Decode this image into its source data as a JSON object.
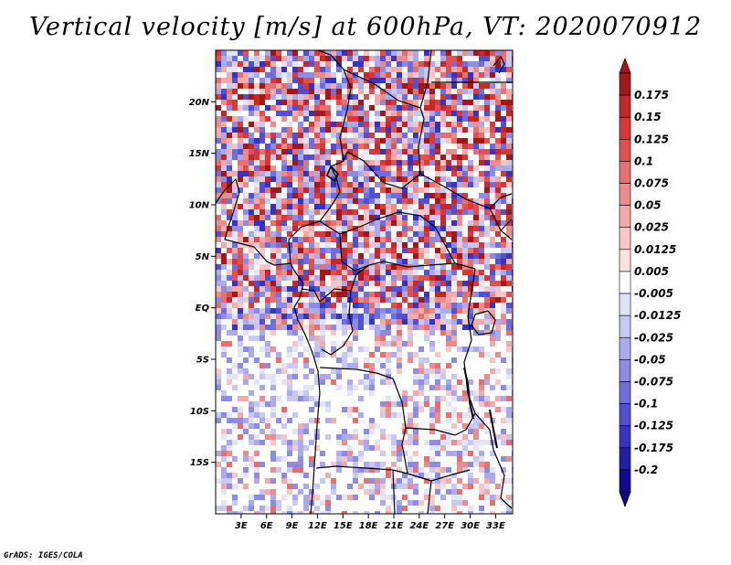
{
  "title": "Vertical velocity [m/s] at 600hPa, VT: 2020070912",
  "credit": "GrADS: IGES/COLA",
  "map": {
    "lon_range": [
      0,
      35
    ],
    "lat_range": [
      -20,
      25
    ],
    "lat_ticks": [
      {
        "value": 20,
        "label": "20N"
      },
      {
        "value": 15,
        "label": "15N"
      },
      {
        "value": 10,
        "label": "10N"
      },
      {
        "value": 5,
        "label": "5N"
      },
      {
        "value": 0,
        "label": "EQ"
      },
      {
        "value": -5,
        "label": "5S"
      },
      {
        "value": -10,
        "label": "10S"
      },
      {
        "value": -15,
        "label": "15S"
      }
    ],
    "lon_ticks": [
      {
        "value": 3,
        "label": "3E"
      },
      {
        "value": 6,
        "label": "6E"
      },
      {
        "value": 9,
        "label": "9E"
      },
      {
        "value": 12,
        "label": "12E"
      },
      {
        "value": 15,
        "label": "15E"
      },
      {
        "value": 18,
        "label": "18E"
      },
      {
        "value": 21,
        "label": "21E"
      },
      {
        "value": 24,
        "label": "24E"
      },
      {
        "value": 27,
        "label": "27E"
      },
      {
        "value": 30,
        "label": "30E"
      },
      {
        "value": 33,
        "label": "33E"
      }
    ]
  },
  "colorbar": {
    "labels": [
      "0.175",
      "0.15",
      "0.125",
      "0.1",
      "0.075",
      "0.05",
      "0.025",
      "0.0125",
      "0.005",
      "-0.005",
      "-0.0125",
      "-0.025",
      "-0.05",
      "-0.075",
      "-0.1",
      "-0.125",
      "-0.175",
      "-0.2"
    ],
    "colors": [
      "#a01818",
      "#c42828",
      "#d83838",
      "#e05050",
      "#e67070",
      "#ec8c8c",
      "#f2aaaa",
      "#f7c6c6",
      "#fbe2e2",
      "#ffffff",
      "#e4e4f8",
      "#c8c8f2",
      "#aaaaec",
      "#8c8ce4",
      "#6e6edc",
      "#5050d0",
      "#3434c0",
      "#1e1ea6",
      "#120a8e"
    ]
  }
}
